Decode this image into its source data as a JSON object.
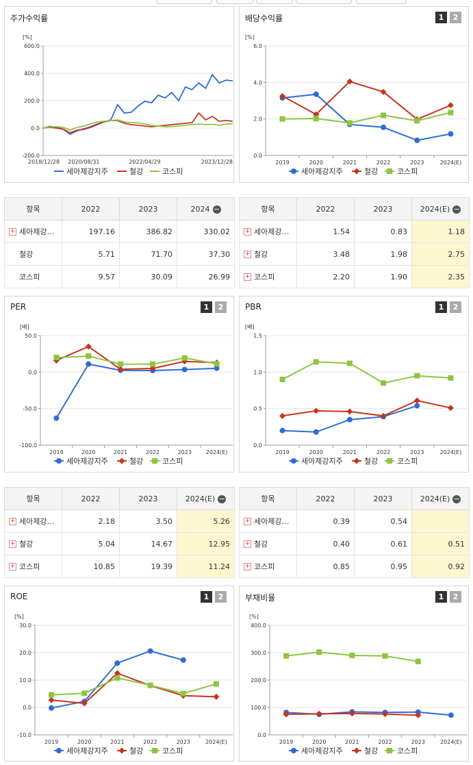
{
  "colors": {
    "series_a": "#2f6bd8",
    "series_b": "#c9331d",
    "series_c": "#8cc63f"
  },
  "legend": [
    "세아제강지주",
    "철강",
    "코스피"
  ],
  "tabs": [
    "1",
    "2"
  ],
  "panels": {
    "stock": {
      "title": "주가수익률"
    },
    "dividend": {
      "title": "배당수익률"
    },
    "per": {
      "title": "PER"
    },
    "pbr": {
      "title": "PBR"
    },
    "roe": {
      "title": "ROE"
    },
    "debt": {
      "title": "부채비율"
    }
  },
  "tables": {
    "stock": {
      "headers": [
        "항목",
        "2022",
        "2023",
        "2024"
      ],
      "rows": [
        {
          "name": "세아제강…",
          "plus": true,
          "values": [
            "197.16",
            "386.82",
            "330.02"
          ]
        },
        {
          "name": "철강",
          "plus": false,
          "values": [
            "5.71",
            "71.70",
            "37.30"
          ]
        },
        {
          "name": "코스피",
          "plus": false,
          "values": [
            "9.57",
            "30.09",
            "26.99"
          ]
        }
      ]
    },
    "dividend": {
      "headers": [
        "항목",
        "2022",
        "2023",
        "2024(E)"
      ],
      "rows": [
        {
          "name": "세아제강…",
          "plus": true,
          "values": [
            "1.54",
            "0.83",
            "1.18"
          ]
        },
        {
          "name": "철강",
          "plus": true,
          "values": [
            "3.48",
            "1.98",
            "2.75"
          ]
        },
        {
          "name": "코스피",
          "plus": true,
          "values": [
            "2.20",
            "1.90",
            "2.35"
          ]
        }
      ]
    },
    "per": {
      "headers": [
        "항목",
        "2022",
        "2023",
        "2024(E)"
      ],
      "rows": [
        {
          "name": "세아제강…",
          "plus": true,
          "values": [
            "2.18",
            "3.50",
            "5.26"
          ]
        },
        {
          "name": "철강",
          "plus": true,
          "values": [
            "5.04",
            "14.67",
            "12.95"
          ]
        },
        {
          "name": "코스피",
          "plus": true,
          "values": [
            "10.85",
            "19.39",
            "11.24"
          ]
        }
      ]
    },
    "pbr": {
      "headers": [
        "항목",
        "2022",
        "2023",
        "2024(E)"
      ],
      "rows": [
        {
          "name": "세아제강…",
          "plus": true,
          "values": [
            "0.39",
            "0.54",
            ""
          ]
        },
        {
          "name": "철강",
          "plus": true,
          "values": [
            "0.40",
            "0.61",
            "0.51"
          ]
        },
        {
          "name": "코스피",
          "plus": true,
          "values": [
            "0.85",
            "0.95",
            "0.92"
          ]
        }
      ]
    }
  },
  "chart_data": [
    {
      "id": "stock",
      "type": "line",
      "unit": "[%]",
      "ylim": [
        -200,
        600
      ],
      "yticks": [
        "600.0",
        "400.0",
        "200.0",
        "0.0",
        "-200.0"
      ],
      "xticks": [
        "2018/12/28",
        "2020/08/31",
        "2022/04/29",
        "2023/12/28"
      ],
      "x": [
        "2018/12/28",
        "2019/04",
        "2019/08",
        "2019/12",
        "2020/03",
        "2020/06",
        "2020/08/31",
        "2020/12",
        "2021/03",
        "2021/06",
        "2021/09",
        "2021/11",
        "2022/01",
        "2022/02",
        "2022/03",
        "2022/04/29",
        "2022/06",
        "2022/08",
        "2022/10",
        "2022/12",
        "2023/02",
        "2023/04",
        "2023/06",
        "2023/07",
        "2023/08",
        "2023/09",
        "2023/10",
        "2023/11",
        "2023/12/28"
      ],
      "series": [
        {
          "name": "세아제강지주",
          "values": [
            0,
            12,
            5,
            -10,
            -45,
            -20,
            -5,
            10,
            30,
            45,
            60,
            170,
            110,
            115,
            160,
            195,
            185,
            240,
            220,
            260,
            200,
            300,
            280,
            330,
            290,
            390,
            330,
            350,
            345
          ]
        },
        {
          "name": "철강",
          "values": [
            0,
            5,
            0,
            -8,
            -35,
            -15,
            -10,
            5,
            25,
            45,
            55,
            55,
            35,
            25,
            20,
            15,
            10,
            15,
            20,
            25,
            30,
            35,
            40,
            110,
            60,
            85,
            50,
            55,
            50
          ]
        },
        {
          "name": "코스피",
          "values": [
            0,
            8,
            10,
            5,
            -15,
            5,
            15,
            30,
            45,
            50,
            55,
            60,
            45,
            40,
            38,
            30,
            20,
            15,
            10,
            12,
            15,
            20,
            25,
            30,
            25,
            28,
            20,
            30,
            30
          ]
        }
      ]
    },
    {
      "id": "dividend",
      "type": "line",
      "unit": "[%]",
      "ylim": [
        0,
        6
      ],
      "yticks": [
        "6.0",
        "4.0",
        "2.0",
        "0.0"
      ],
      "categories": [
        "2019",
        "2020",
        "2021",
        "2022",
        "2023",
        "2024(E)"
      ],
      "series": [
        {
          "name": "세아제강지주",
          "values": [
            3.15,
            3.35,
            1.7,
            1.54,
            0.83,
            1.18
          ]
        },
        {
          "name": "철강",
          "values": [
            3.25,
            2.25,
            4.05,
            3.48,
            1.98,
            2.75
          ]
        },
        {
          "name": "코스피",
          "values": [
            2.0,
            2.02,
            1.78,
            2.2,
            1.9,
            2.35
          ]
        }
      ]
    },
    {
      "id": "per",
      "type": "line",
      "unit": "[배]",
      "ylim": [
        -100,
        50
      ],
      "yticks": [
        "50.0",
        "0.0",
        "-50.0",
        "-100.0"
      ],
      "categories": [
        "2019",
        "2020",
        "2021",
        "2022",
        "2023",
        "2024(E)"
      ],
      "series": [
        {
          "name": "세아제강지주",
          "values": [
            -63,
            11,
            2.5,
            2.18,
            3.5,
            5.26
          ]
        },
        {
          "name": "철강",
          "values": [
            16,
            35,
            4,
            5.04,
            14.67,
            12.95
          ]
        },
        {
          "name": "코스피",
          "values": [
            20,
            22,
            11,
            10.85,
            19.39,
            11.24
          ]
        }
      ]
    },
    {
      "id": "pbr",
      "type": "line",
      "unit": "[배]",
      "ylim": [
        0,
        1.5
      ],
      "yticks": [
        "1.5",
        "1.0",
        "0.5",
        "0.0"
      ],
      "categories": [
        "2019",
        "2020",
        "2021",
        "2022",
        "2023",
        "2024(E)"
      ],
      "series": [
        {
          "name": "세아제강지주",
          "values": [
            0.2,
            0.18,
            0.35,
            0.39,
            0.54,
            null
          ]
        },
        {
          "name": "철강",
          "values": [
            0.4,
            0.47,
            0.46,
            0.4,
            0.61,
            0.51
          ]
        },
        {
          "name": "코스피",
          "values": [
            0.9,
            1.14,
            1.12,
            0.85,
            0.95,
            0.92
          ]
        }
      ]
    },
    {
      "id": "roe",
      "type": "line",
      "unit": "[%]",
      "ylim": [
        -10,
        30
      ],
      "yticks": [
        "30.0",
        "20.0",
        "10.0",
        "0.0",
        "-10.0"
      ],
      "categories": [
        "2019",
        "2020",
        "2021",
        "2022",
        "2023",
        "2024(E)"
      ],
      "series": [
        {
          "name": "세아제강지주",
          "values": [
            -0.2,
            2.2,
            16.2,
            20.6,
            17.3,
            null
          ]
        },
        {
          "name": "철강",
          "values": [
            2.7,
            1.5,
            12.5,
            8.0,
            4.3,
            3.9
          ]
        },
        {
          "name": "코스피",
          "values": [
            4.6,
            5.2,
            10.8,
            8.1,
            5.1,
            8.6
          ]
        }
      ]
    },
    {
      "id": "debt",
      "type": "line",
      "unit": "[%]",
      "ylim": [
        0,
        400
      ],
      "yticks": [
        "400.0",
        "300.0",
        "200.0",
        "100.0",
        "0.0"
      ],
      "categories": [
        "2019",
        "2020",
        "2021",
        "2022",
        "2023",
        "2024(E)"
      ],
      "series": [
        {
          "name": "세아제강지주",
          "values": [
            82,
            75,
            84,
            82,
            83,
            72
          ]
        },
        {
          "name": "철강",
          "values": [
            75,
            77,
            78,
            76,
            72,
            null
          ]
        },
        {
          "name": "코스피",
          "values": [
            288,
            302,
            290,
            288,
            268,
            null
          ]
        }
      ]
    }
  ]
}
